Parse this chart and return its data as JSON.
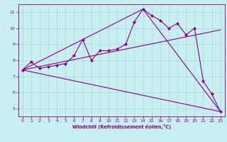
{
  "xlabel": "Windchill (Refroidissement éolien,°C)",
  "xlim": [
    -0.5,
    23.5
  ],
  "ylim": [
    4.5,
    11.5
  ],
  "yticks": [
    5,
    6,
    7,
    8,
    9,
    10,
    11
  ],
  "xticks": [
    0,
    1,
    2,
    3,
    4,
    5,
    6,
    7,
    8,
    9,
    10,
    11,
    12,
    13,
    14,
    15,
    16,
    17,
    18,
    19,
    20,
    21,
    22,
    23
  ],
  "bg_color": "#c8eef0",
  "grid_color": "#a8d8dc",
  "line_color": "#880088",
  "line1_x": [
    0,
    1,
    2,
    3,
    4,
    5,
    6,
    7,
    8,
    9,
    10,
    11,
    12,
    13,
    14,
    15,
    16,
    17,
    18,
    19,
    20,
    21,
    22,
    23
  ],
  "line1_y": [
    7.4,
    7.9,
    7.5,
    7.6,
    7.7,
    7.8,
    8.3,
    9.3,
    8.0,
    8.6,
    8.6,
    8.7,
    9.0,
    10.4,
    11.2,
    10.8,
    10.5,
    10.0,
    10.3,
    9.6,
    10.0,
    6.7,
    5.9,
    4.8
  ],
  "line2_x": [
    0,
    23
  ],
  "line2_y": [
    7.4,
    9.9
  ],
  "line3_x": [
    0,
    23
  ],
  "line3_y": [
    7.4,
    4.8
  ],
  "line4_x": [
    0,
    14,
    23
  ],
  "line4_y": [
    7.4,
    11.2,
    4.8
  ]
}
